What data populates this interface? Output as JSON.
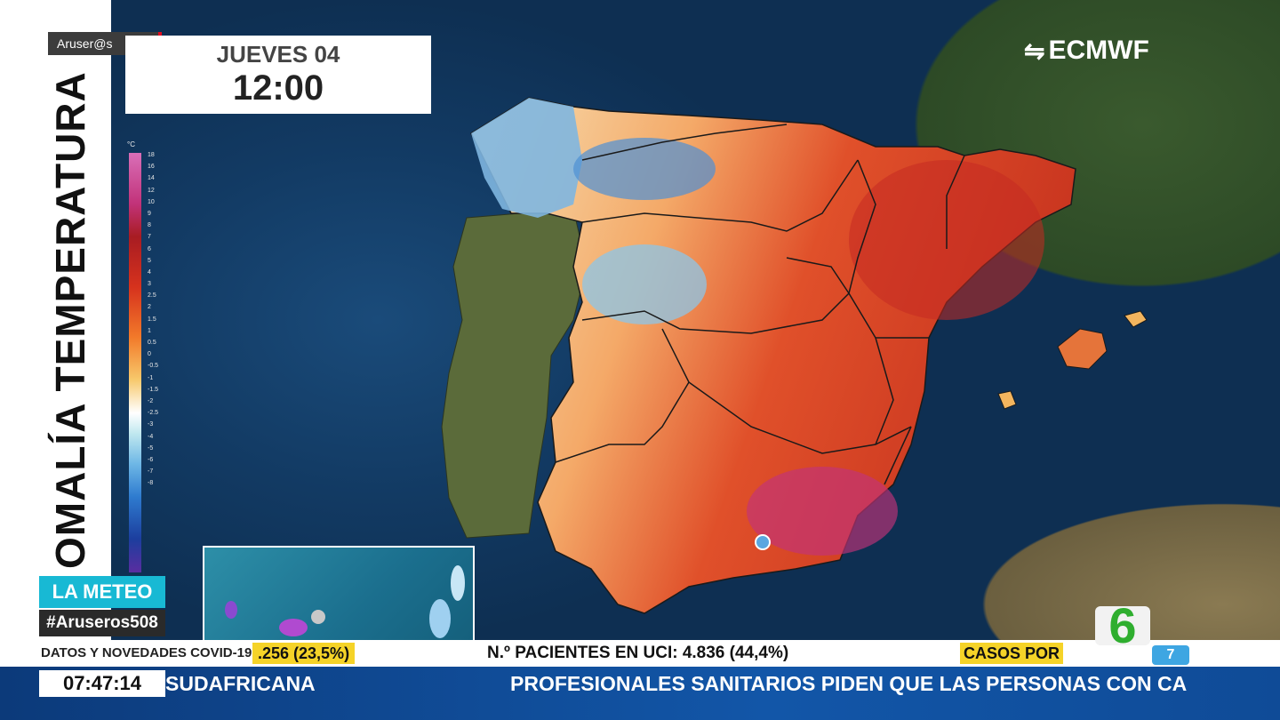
{
  "header": {
    "logo_text": "Aruser@s",
    "day": "JUEVES 04",
    "time": "12:00",
    "source": "ECMWF"
  },
  "map": {
    "title": "ANOMALÍA TEMPERATURA",
    "title_visible": "OMALÍA TEMPERATURA",
    "scale_unit": "°C",
    "scale_ticks": [
      "18",
      "16",
      "14",
      "12",
      "10",
      "9",
      "8",
      "7",
      "6",
      "5",
      "4",
      "3",
      "2.5",
      "2",
      "1.5",
      "1",
      "0.5",
      "0",
      "-0.5",
      "-1",
      "-1.5",
      "-2",
      "-2.5",
      "-3",
      "-4",
      "-5",
      "-6",
      "-7",
      "-8"
    ],
    "palette": {
      "cold": "#2e7bcf",
      "neutral": "#ffffff",
      "warm": "#d6321d",
      "very_warm": "#c2337a"
    }
  },
  "sidebar": {
    "meteo_label": "LA METEO",
    "hashtag": "#Aruseros508"
  },
  "ticker": {
    "section_label": "DATOS Y NOVEDADES COVID-19",
    "item_a": ".256 (23,5%)",
    "item_b": "N.º PACIENTES EN UCI: 4.836 (44,4%)",
    "item_c": "CASOS POR",
    "clock": "07:47:14",
    "headline_a": "SUDAFRICANA",
    "headline_b": "PROFESIONALES SANITARIOS PIDEN QUE LAS PERSONAS CON CA"
  },
  "channel": {
    "logo_glyph": "6",
    "badge": "7"
  }
}
